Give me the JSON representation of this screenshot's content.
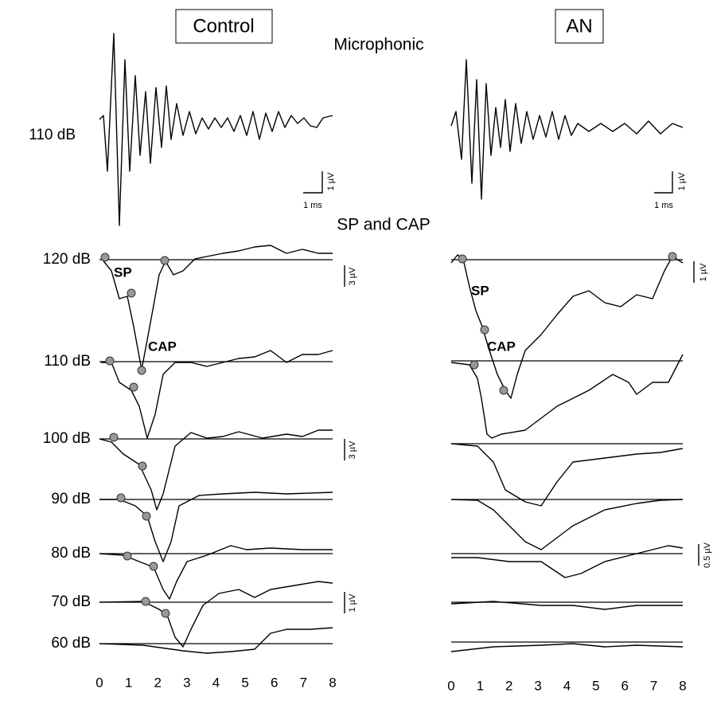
{
  "panels": [
    {
      "title": "Control"
    },
    {
      "title": "AN"
    }
  ],
  "microphonic": {
    "title": "Microphonic",
    "level": "110 dB",
    "time_scale": "1 ms",
    "amp_scale": "1 µV"
  },
  "sp_cap": {
    "title": "SP and CAP",
    "levels": [
      "120 dB",
      "110 dB",
      "100 dB",
      "90 dB",
      "80 dB",
      "70 dB",
      "60 dB"
    ],
    "sp_label": "SP",
    "cap_label": "CAP",
    "scales": [
      "3 µV",
      "3 µV",
      "1 µV",
      "1 µV",
      "0.5 µV"
    ]
  },
  "x_axis": {
    "ticks": [
      0,
      1,
      2,
      3,
      4,
      5,
      6,
      7,
      8
    ]
  }
}
